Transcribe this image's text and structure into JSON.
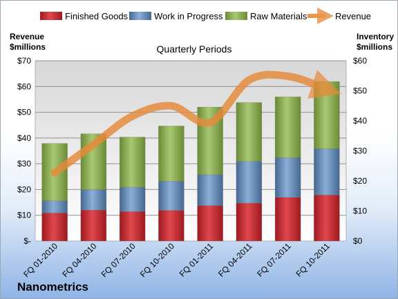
{
  "chart_data": {
    "type": "bar",
    "subtype": "stacked-bar-with-line",
    "title": "Quarterly Periods",
    "company": "Nanometrics",
    "left_axis_title": [
      "Revenue",
      "$millions"
    ],
    "right_axis_title": [
      "Inventory",
      "$millions"
    ],
    "categories": [
      "FQ 01-2010",
      "FQ 04-2010",
      "FQ 07-2010",
      "FQ 10-2010",
      "FQ 01-2011",
      "FQ 04-2011",
      "FQ 07-2011",
      "FQ 10-2011"
    ],
    "left_ticks": [
      "$-",
      "$10",
      "$20",
      "$30",
      "$40",
      "$50",
      "$60",
      "$70"
    ],
    "right_ticks": [
      "$0",
      "$10",
      "$20",
      "$30",
      "$40",
      "$50",
      "$60"
    ],
    "ylim_inventory": [
      0,
      60
    ],
    "ylim_revenue": [
      0,
      70
    ],
    "legend_position": "top",
    "grid": true,
    "series": [
      {
        "name": "Finished Goods",
        "axis": "right",
        "color": "#c0262c",
        "values": [
          9.3,
          10.3,
          9.8,
          10.2,
          11.8,
          12.6,
          14.5,
          15.3
        ]
      },
      {
        "name": "Work in Progress",
        "axis": "right",
        "color": "#4f81bd",
        "values": [
          4.1,
          6.8,
          8.1,
          9.7,
          10.3,
          13.9,
          13.2,
          15.4
        ]
      },
      {
        "name": "Raw Materials",
        "axis": "right",
        "color": "#8db05a",
        "values": [
          19.1,
          18.6,
          16.7,
          18.4,
          22.5,
          19.6,
          20.3,
          22.4
        ]
      },
      {
        "name": "Revenue",
        "axis": "left",
        "type": "line",
        "color": "#e68a3a",
        "values": [
          26.5,
          37.5,
          48.5,
          52.5,
          46,
          62.5,
          64,
          59
        ]
      }
    ]
  }
}
